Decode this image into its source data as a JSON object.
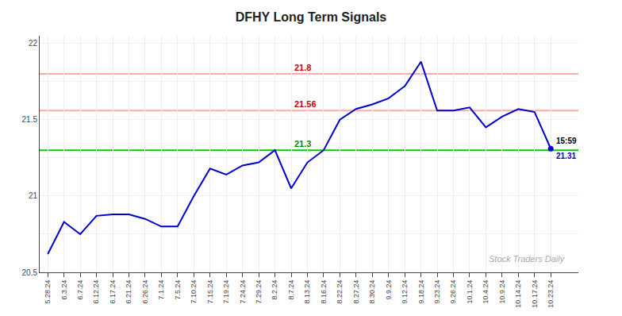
{
  "chart_data": {
    "type": "line",
    "title": "DFHY Long Term Signals",
    "categories": [
      "5.28.24",
      "6.3.24",
      "6.7.24",
      "6.12.24",
      "6.17.24",
      "6.21.24",
      "6.26.24",
      "7.1.24",
      "7.5.24",
      "7.10.24",
      "7.15.24",
      "7.19.24",
      "7.24.24",
      "7.29.24",
      "8.2.24",
      "8.7.24",
      "8.13.24",
      "8.16.24",
      "8.22.24",
      "8.27.24",
      "8.30.24",
      "9.9.24",
      "9.12.24",
      "9.18.24",
      "9.23.24",
      "9.26.24",
      "10.1.24",
      "10.4.24",
      "10.9.24",
      "10.14.24",
      "10.17.24",
      "10.23.24"
    ],
    "values": [
      20.62,
      20.83,
      20.75,
      20.87,
      20.88,
      20.88,
      20.85,
      20.8,
      20.8,
      21.0,
      21.18,
      21.14,
      21.2,
      21.22,
      21.3,
      21.05,
      21.22,
      21.3,
      21.5,
      21.57,
      21.6,
      21.64,
      21.72,
      21.88,
      21.56,
      21.56,
      21.58,
      21.45,
      21.52,
      21.57,
      21.55,
      21.31
    ],
    "color": "#0000cc",
    "ylim": [
      20.5,
      22.05
    ],
    "yticks": [
      20.5,
      {
        "value": 20.75,
        "label": ""
      },
      21,
      {
        "value": 21.25,
        "label": ""
      },
      21.5,
      {
        "value": 21.75,
        "label": ""
      },
      22
    ],
    "grid": true,
    "reference_lines": [
      {
        "value": 21.8,
        "color": "#ffaaaa",
        "label": "21.8",
        "label_color": "#cc0000"
      },
      {
        "value": 21.56,
        "color": "#ffaaaa",
        "label": "21.56",
        "label_color": "#cc0000"
      },
      {
        "value": 21.3,
        "color": "#00cc00",
        "label": "21.3",
        "label_color": "#008800"
      }
    ],
    "annotations": [
      {
        "text": "15:59",
        "color": "#000000"
      },
      {
        "text": "21.31",
        "color": "#0000cc"
      }
    ],
    "watermark": {
      "text": "Stock Traders Daily",
      "color": "#aaaaaa"
    }
  }
}
